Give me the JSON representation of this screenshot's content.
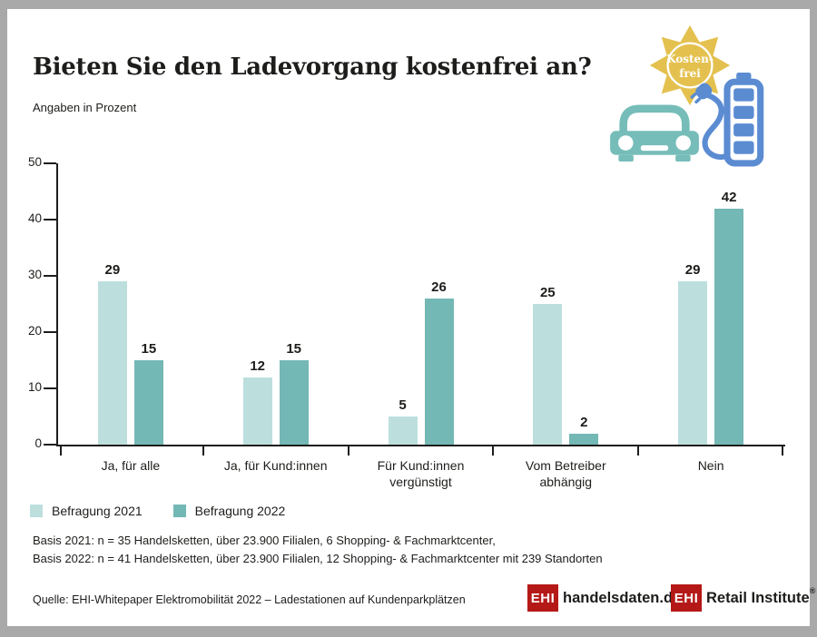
{
  "frame": {
    "border_color": "#a9a9a9",
    "background": "#ffffff"
  },
  "header": {
    "title": "Bieten Sie den Ladevorgang kostenfrei an?",
    "subtitle": "Angaben in Prozent"
  },
  "illustration": {
    "sun_text_line1": "Kosten-",
    "sun_text_line2": "frei",
    "sun_color": "#e4c14f",
    "car_color": "#76bdb9",
    "battery_color": "#5b8cd2"
  },
  "chart_data": {
    "type": "bar",
    "title": "Bieten Sie den Ladevorgang kostenfrei an?",
    "unit_note": "Angaben in Prozent",
    "categories": [
      "Ja, für alle",
      "Ja, für Kund:innen",
      "Für Kund:innen\nvergünstigt",
      "Vom Betreiber\nabhängig",
      "Nein"
    ],
    "series": [
      {
        "name": "Befragung 2021",
        "color": "#bcdfde",
        "values": [
          29,
          12,
          5,
          25,
          29
        ]
      },
      {
        "name": "Befragung 2022",
        "color": "#74b8b5",
        "values": [
          15,
          15,
          26,
          2,
          42
        ]
      }
    ],
    "ylim": [
      0,
      50
    ],
    "yticks": [
      0,
      10,
      20,
      30,
      40,
      50
    ],
    "grid": false,
    "legend_position": "bottom-left"
  },
  "notes": {
    "basis_2021": "Basis 2021: n = 35 Handelsketten, über 23.900 Filialen, 6 Shopping- & Fachmarktcenter,",
    "basis_2022": "Basis 2022: n = 41 Handelsketten, über 23.900 Filialen, 12 Shopping- & Fachmarktcenter mit 239 Standorten"
  },
  "footer": {
    "source": "Quelle: EHI-Whitepaper Elektromobilität 2022 – Ladestationen auf Kundenparkplätzen",
    "brand_red": "#b41917",
    "logos": [
      {
        "mark": "EHI",
        "label": "handelsdaten.de"
      },
      {
        "mark": "EHI",
        "label": "Retail Institute",
        "registered": "®"
      }
    ]
  }
}
